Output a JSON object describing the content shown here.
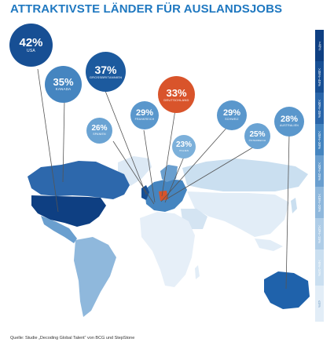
{
  "title": "ATTRAKTIVSTE LÄNDER FÜR AUSLANDSJOBS",
  "source": "Quelle: Studie „Decoding Global Talent“ von BCG und StepStone",
  "legend": [
    {
      "label": ">40%",
      "color": "#0e3f82"
    },
    {
      "label": ">35%–40%",
      "color": "#174f94"
    },
    {
      "label": ">30%–35%",
      "color": "#2a66aa"
    },
    {
      "label": ">25%–30%",
      "color": "#4585c0"
    },
    {
      "label": ">20%–25%",
      "color": "#6a9fcf"
    },
    {
      "label": ">15%–20%",
      "color": "#8fb8dc"
    },
    {
      "label": ">10%–15%",
      "color": "#afcde7"
    },
    {
      "label": ">5%–10%",
      "color": "#cadff0"
    },
    {
      "label": "≤5%",
      "color": "#e2edf7"
    }
  ],
  "countries": [
    {
      "name": "USA",
      "value": "42%",
      "color": "#174f94"
    },
    {
      "name": "KANADA",
      "value": "35%",
      "color": "#4585c0"
    },
    {
      "name": "GROSSBRITANNIEN",
      "value": "37%",
      "color": "#1c5a9e"
    },
    {
      "name": "DEUTSCHLAND",
      "value": "33%",
      "color": "#d9542b"
    },
    {
      "name": "FRANKREICH",
      "value": "29%",
      "color": "#5a97cc"
    },
    {
      "name": "SPANIEN",
      "value": "26%",
      "color": "#6aa3d3"
    },
    {
      "name": "SCHWEIZ",
      "value": "29%",
      "color": "#5a97cc"
    },
    {
      "name": "ITALIEN",
      "value": "23%",
      "color": "#7cb0da"
    },
    {
      "name": "ÖSTERREICH",
      "value": "25%",
      "color": "#6aa3d3"
    },
    {
      "name": "AUSTRALIEN",
      "value": "28%",
      "color": "#5a97cc"
    }
  ]
}
